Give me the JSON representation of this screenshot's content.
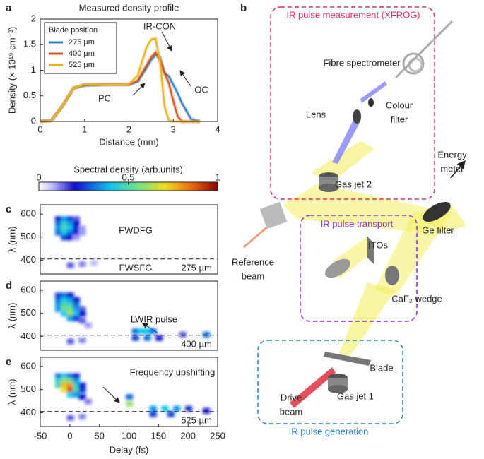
{
  "panel_labels": [
    "a",
    "b",
    "c",
    "d",
    "e"
  ],
  "chart_data": [
    {
      "type": "line",
      "title": "Measured density profile",
      "xlabel": "Distance (mm)",
      "ylabel": "Density (× 10¹⁹ cm⁻³)",
      "xlim": [
        0,
        4
      ],
      "xticks": [
        0,
        1,
        2,
        3,
        4
      ],
      "ylim": [
        0,
        2
      ],
      "yticks": [
        0,
        0.5,
        1,
        1.5,
        2
      ],
      "legend_title": "Blade position",
      "legend": "upper left",
      "x": [
        0,
        0.25,
        0.5,
        0.75,
        1,
        1.5,
        2,
        2.2,
        2.4,
        2.5,
        2.6,
        2.7,
        2.8,
        2.9,
        3,
        3.1,
        3.2,
        3.4,
        3.6
      ],
      "series": [
        {
          "name": "275 µm",
          "color": "#2f7ec0",
          "values": [
            0,
            0.02,
            0.3,
            0.65,
            0.7,
            0.72,
            0.72,
            0.78,
            1.05,
            1.2,
            1.3,
            1.25,
            0.95,
            0.88,
            0.72,
            0.55,
            0.35,
            0.05,
            0
          ]
        },
        {
          "name": "400 µm",
          "color": "#d9541e",
          "values": [
            0,
            0.02,
            0.3,
            0.65,
            0.72,
            0.72,
            0.72,
            0.8,
            1.1,
            1.25,
            1.35,
            1.2,
            0.95,
            0.75,
            0.4,
            0.1,
            0,
            0,
            0
          ]
        },
        {
          "name": "525 µm",
          "color": "#edb120",
          "values": [
            0,
            0.02,
            0.3,
            0.65,
            0.72,
            0.72,
            0.73,
            0.9,
            1.45,
            1.6,
            1.62,
            1.2,
            0.3,
            0.02,
            0,
            0,
            0,
            0,
            0
          ]
        }
      ],
      "annotations": [
        "IR-CON",
        "PC",
        "OC"
      ]
    },
    {
      "type": "colorbar",
      "title": "Spectral density (arb.units)",
      "xlim": [
        0,
        1
      ],
      "xticks": [
        0,
        0.5,
        1
      ]
    },
    {
      "type": "heatmap",
      "ylabel": "λ (nm)",
      "xlim": [
        -50,
        250
      ],
      "ylim": [
        340,
        640
      ],
      "yticks": [
        400,
        500,
        600
      ],
      "dashed_line": 405,
      "label": "275 µm",
      "annotations": [
        "FWDFG",
        "FWSFG"
      ],
      "cells": [
        [
          -20,
          580,
          0.2
        ],
        [
          -10,
          580,
          0.35
        ],
        [
          0,
          580,
          0.25
        ],
        [
          10,
          580,
          0.15
        ],
        [
          -20,
          560,
          0.3
        ],
        [
          -10,
          560,
          0.45
        ],
        [
          0,
          560,
          0.35
        ],
        [
          10,
          560,
          0.2
        ],
        [
          -20,
          540,
          0.35
        ],
        [
          -10,
          540,
          0.5
        ],
        [
          0,
          540,
          0.4
        ],
        [
          10,
          540,
          0.2
        ],
        [
          20,
          540,
          0.1
        ],
        [
          -20,
          520,
          0.3
        ],
        [
          -10,
          520,
          0.4
        ],
        [
          0,
          520,
          0.3
        ],
        [
          10,
          520,
          0.2
        ],
        [
          20,
          520,
          0.1
        ],
        [
          -10,
          500,
          0.25
        ],
        [
          0,
          500,
          0.2
        ],
        [
          10,
          500,
          0.1
        ],
        [
          0,
          380,
          0.15
        ],
        [
          20,
          385,
          0.12
        ],
        [
          40,
          390,
          0.08
        ]
      ]
    },
    {
      "type": "heatmap",
      "ylabel": "λ (nm)",
      "xlim": [
        -50,
        250
      ],
      "ylim": [
        340,
        640
      ],
      "yticks": [
        400,
        500,
        600
      ],
      "dashed_line": 405,
      "label": "400 µm",
      "annotations": [
        "LWIR pulse"
      ],
      "cells": [
        [
          -20,
          580,
          0.25
        ],
        [
          -10,
          580,
          0.3
        ],
        [
          0,
          580,
          0.2
        ],
        [
          -20,
          560,
          0.3
        ],
        [
          -10,
          560,
          0.4
        ],
        [
          0,
          560,
          0.35
        ],
        [
          10,
          560,
          0.2
        ],
        [
          -20,
          540,
          0.35
        ],
        [
          -10,
          540,
          0.5
        ],
        [
          0,
          540,
          0.45
        ],
        [
          10,
          540,
          0.3
        ],
        [
          -20,
          520,
          0.35
        ],
        [
          -10,
          520,
          0.55
        ],
        [
          0,
          520,
          0.55
        ],
        [
          10,
          520,
          0.35
        ],
        [
          20,
          520,
          0.15
        ],
        [
          -10,
          500,
          0.4
        ],
        [
          0,
          500,
          0.6
        ],
        [
          10,
          500,
          0.4
        ],
        [
          20,
          500,
          0.2
        ],
        [
          0,
          480,
          0.35
        ],
        [
          10,
          480,
          0.25
        ],
        [
          20,
          470,
          0.15
        ],
        [
          30,
          450,
          0.1
        ],
        [
          0,
          380,
          0.15
        ],
        [
          20,
          385,
          0.12
        ],
        [
          110,
          425,
          0.3
        ],
        [
          120,
          425,
          0.4
        ],
        [
          130,
          425,
          0.4
        ],
        [
          140,
          425,
          0.3
        ],
        [
          110,
          395,
          0.25
        ],
        [
          130,
          395,
          0.3
        ],
        [
          150,
          395,
          0.2
        ],
        [
          190,
          410,
          0.15
        ],
        [
          230,
          410,
          0.3
        ]
      ]
    },
    {
      "type": "heatmap",
      "ylabel": "λ (nm)",
      "xlabel": "Delay (fs)",
      "xlim": [
        -50,
        250
      ],
      "ylim": [
        340,
        640
      ],
      "yticks": [
        400,
        500,
        600
      ],
      "xticks": [
        -50,
        0,
        50,
        100,
        150,
        200,
        250
      ],
      "dashed_line": 405,
      "label": "525 µm",
      "annotations": [
        "Frequency upshifting"
      ],
      "cells": [
        [
          -20,
          560,
          0.3
        ],
        [
          -10,
          560,
          0.4
        ],
        [
          0,
          560,
          0.3
        ],
        [
          10,
          560,
          0.2
        ],
        [
          -20,
          540,
          0.45
        ],
        [
          -10,
          540,
          0.6
        ],
        [
          0,
          540,
          0.55
        ],
        [
          10,
          540,
          0.35
        ],
        [
          -20,
          520,
          0.5
        ],
        [
          -10,
          520,
          0.75
        ],
        [
          0,
          520,
          0.8
        ],
        [
          10,
          520,
          0.45
        ],
        [
          20,
          520,
          0.2
        ],
        [
          -10,
          500,
          0.7
        ],
        [
          0,
          500,
          0.9
        ],
        [
          10,
          500,
          0.5
        ],
        [
          20,
          500,
          0.25
        ],
        [
          0,
          480,
          0.4
        ],
        [
          10,
          480,
          0.35
        ],
        [
          20,
          470,
          0.2
        ],
        [
          30,
          450,
          0.12
        ],
        [
          0,
          380,
          0.15
        ],
        [
          20,
          385,
          0.12
        ],
        [
          100,
          440,
          0.6
        ],
        [
          100,
          470,
          0.3
        ],
        [
          140,
          420,
          0.35
        ],
        [
          160,
          420,
          0.4
        ],
        [
          180,
          420,
          0.35
        ],
        [
          200,
          420,
          0.25
        ],
        [
          140,
          395,
          0.25
        ],
        [
          170,
          395,
          0.25
        ],
        [
          230,
          410,
          0.2
        ]
      ]
    }
  ],
  "diagram": {
    "groups": [
      "IR pulse measurement (XFROG)",
      "IR pulse transport",
      "IR pulse generation"
    ],
    "labels": [
      {
        "lines": [
          "Fibre spectrometer"
        ]
      },
      {
        "lines": [
          "Lens"
        ]
      },
      {
        "lines": [
          "Colour",
          "filter"
        ]
      },
      {
        "lines": [
          "Gas jet 2"
        ]
      },
      {
        "lines": [
          "Energy",
          "meter"
        ]
      },
      {
        "lines": [
          "Ge filter"
        ]
      },
      {
        "lines": [
          "ITOs"
        ]
      },
      {
        "lines": [
          "Reference",
          "beam"
        ]
      },
      {
        "lines": [
          "CaF₂ wedge"
        ]
      },
      {
        "lines": [
          "Blade"
        ]
      },
      {
        "lines": [
          "Drive",
          "beam"
        ]
      },
      {
        "lines": [
          "Gas jet 1"
        ]
      }
    ]
  }
}
